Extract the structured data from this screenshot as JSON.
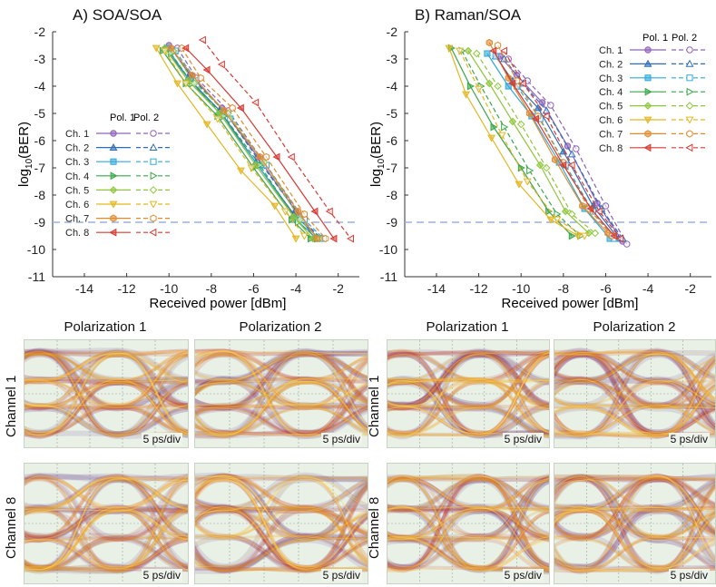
{
  "panels": [
    {
      "title": "A) SOA/SOA",
      "xlabel": "Received power [dBm]",
      "ylabel_main": "log",
      "ylabel_sub": "10",
      "ylabel_tail": "(BER)",
      "legend": {
        "header_pol1": "Pol. 1",
        "header_pol2": "Pol. 2",
        "position": "left-middle"
      }
    },
    {
      "title": "B) Raman/SOA",
      "xlabel": "Received power [dBm]",
      "ylabel_main": "log",
      "ylabel_sub": "10",
      "ylabel_tail": "(BER)",
      "legend": {
        "header_pol1": "Pol. 1",
        "header_pol2": "Pol. 2",
        "position": "top-right"
      }
    }
  ],
  "chart_data": [
    {
      "type": "line",
      "title": "A) SOA/SOA",
      "xlabel": "Received power [dBm]",
      "ylabel": "log10(BER)",
      "xlim": [
        -15.5,
        -1
      ],
      "ylim": [
        -11,
        -2
      ],
      "xticks": [
        -14,
        -12,
        -10,
        -8,
        -6,
        -4,
        -2
      ],
      "yticks": [
        -2,
        -3,
        -4,
        -5,
        -6,
        -7,
        -8,
        -9,
        -10,
        -11
      ],
      "threshold": -9,
      "grid": false,
      "channels": [
        {
          "name": "Ch. 1",
          "color": "#8e63b8",
          "marker": "circle",
          "pol1": [
            [
              -10.0,
              -2.5
            ],
            [
              -9.0,
              -3.6
            ],
            [
              -7.5,
              -4.8
            ],
            [
              -5.8,
              -6.6
            ],
            [
              -4.0,
              -8.6
            ],
            [
              -3.1,
              -9.6
            ]
          ],
          "pol2": [
            [
              -9.6,
              -2.6
            ],
            [
              -8.7,
              -3.7
            ],
            [
              -7.2,
              -4.9
            ],
            [
              -5.6,
              -6.7
            ],
            [
              -3.8,
              -8.8
            ],
            [
              -2.9,
              -9.6
            ]
          ]
        },
        {
          "name": "Ch. 2",
          "color": "#2f6db7",
          "marker": "triangle",
          "pol1": [
            [
              -10.2,
              -2.6
            ],
            [
              -9.1,
              -3.7
            ],
            [
              -7.6,
              -4.9
            ],
            [
              -5.9,
              -6.8
            ],
            [
              -4.1,
              -8.7
            ],
            [
              -2.9,
              -9.6
            ]
          ],
          "pol2": [
            [
              -9.8,
              -2.7
            ],
            [
              -8.8,
              -3.8
            ],
            [
              -7.3,
              -5.0
            ],
            [
              -5.6,
              -6.9
            ],
            [
              -3.7,
              -8.9
            ],
            [
              -2.8,
              -9.6
            ]
          ]
        },
        {
          "name": "Ch. 3",
          "color": "#2fa9d8",
          "marker": "square",
          "pol1": [
            [
              -10.1,
              -2.6
            ],
            [
              -9.0,
              -3.8
            ],
            [
              -7.6,
              -5.0
            ],
            [
              -5.8,
              -6.9
            ],
            [
              -4.0,
              -8.9
            ],
            [
              -3.0,
              -9.6
            ]
          ],
          "pol2": [
            [
              -9.7,
              -2.7
            ],
            [
              -8.7,
              -3.8
            ],
            [
              -7.1,
              -5.2
            ],
            [
              -5.4,
              -6.9
            ],
            [
              -3.6,
              -8.9
            ],
            [
              -2.7,
              -9.6
            ]
          ]
        },
        {
          "name": "Ch. 4",
          "color": "#3aa64a",
          "marker": "triangle-right",
          "pol1": [
            [
              -10.3,
              -2.7
            ],
            [
              -9.2,
              -3.9
            ],
            [
              -7.7,
              -5.1
            ],
            [
              -6.0,
              -7.0
            ],
            [
              -4.2,
              -8.9
            ],
            [
              -3.3,
              -9.6
            ]
          ],
          "pol2": [
            [
              -9.9,
              -2.8
            ],
            [
              -8.9,
              -3.9
            ],
            [
              -7.4,
              -5.1
            ],
            [
              -5.7,
              -6.9
            ],
            [
              -3.9,
              -9.0
            ],
            [
              -3.0,
              -9.6
            ]
          ]
        },
        {
          "name": "Ch. 5",
          "color": "#8fc63d",
          "marker": "diamond",
          "pol1": [
            [
              -10.2,
              -2.6
            ],
            [
              -9.1,
              -3.8
            ],
            [
              -7.6,
              -5.0
            ],
            [
              -5.9,
              -6.9
            ],
            [
              -4.1,
              -8.8
            ],
            [
              -3.2,
              -9.6
            ]
          ],
          "pol2": [
            [
              -9.8,
              -2.7
            ],
            [
              -8.8,
              -3.9
            ],
            [
              -7.2,
              -5.0
            ],
            [
              -5.5,
              -6.8
            ],
            [
              -3.8,
              -8.9
            ],
            [
              -2.9,
              -9.6
            ]
          ]
        },
        {
          "name": "Ch. 6",
          "color": "#e3b622",
          "marker": "triangle-down",
          "pol1": [
            [
              -10.6,
              -2.6
            ],
            [
              -9.6,
              -3.9
            ],
            [
              -8.2,
              -5.4
            ],
            [
              -6.6,
              -7.1
            ],
            [
              -5.0,
              -8.4
            ],
            [
              -4.0,
              -9.6
            ]
          ],
          "pol2": [
            [
              -10.2,
              -2.7
            ],
            [
              -9.2,
              -3.9
            ],
            [
              -7.7,
              -5.2
            ],
            [
              -6.1,
              -7.0
            ],
            [
              -4.5,
              -8.6
            ],
            [
              -3.6,
              -9.5
            ]
          ]
        },
        {
          "name": "Ch. 7",
          "color": "#e08a2e",
          "marker": "hexagon",
          "pol1": [
            [
              -9.9,
              -2.6
            ],
            [
              -8.9,
              -3.6
            ],
            [
              -7.4,
              -4.9
            ],
            [
              -5.7,
              -6.6
            ],
            [
              -3.9,
              -8.6
            ],
            [
              -3.0,
              -9.6
            ]
          ],
          "pol2": [
            [
              -9.4,
              -2.6
            ],
            [
              -8.5,
              -3.7
            ],
            [
              -7.0,
              -4.8
            ],
            [
              -5.4,
              -6.6
            ],
            [
              -3.6,
              -8.7
            ],
            [
              -2.6,
              -9.6
            ]
          ]
        },
        {
          "name": "Ch. 8",
          "color": "#d73a34",
          "marker": "triangle-left",
          "pol1": [
            [
              -9.2,
              -2.6
            ],
            [
              -8.2,
              -3.4
            ],
            [
              -6.6,
              -4.8
            ],
            [
              -4.9,
              -6.6
            ],
            [
              -3.1,
              -8.6
            ],
            [
              -2.2,
              -9.6
            ]
          ],
          "pol2": [
            [
              -8.4,
              -2.3
            ],
            [
              -7.5,
              -3.2
            ],
            [
              -5.9,
              -4.6
            ],
            [
              -4.2,
              -6.6
            ],
            [
              -2.4,
              -8.6
            ],
            [
              -1.4,
              -9.6
            ]
          ]
        }
      ]
    },
    {
      "type": "line",
      "title": "B) Raman/SOA",
      "xlabel": "Received power [dBm]",
      "ylabel": "log10(BER)",
      "xlim": [
        -15.5,
        -1
      ],
      "ylim": [
        -11,
        -2
      ],
      "xticks": [
        -14,
        -12,
        -10,
        -8,
        -6,
        -4,
        -2
      ],
      "yticks": [
        -2,
        -3,
        -4,
        -5,
        -6,
        -7,
        -8,
        -9,
        -10,
        -11
      ],
      "threshold": -9,
      "grid": false,
      "channels": [
        {
          "name": "Ch. 1",
          "color": "#8e63b8",
          "marker": "circle",
          "pol1": [
            [
              -11.0,
              -2.9
            ],
            [
              -10.2,
              -3.6
            ],
            [
              -9.0,
              -4.6
            ],
            [
              -7.8,
              -6.2
            ],
            [
              -6.4,
              -8.3
            ],
            [
              -5.2,
              -9.7
            ]
          ],
          "pol2": [
            [
              -10.6,
              -3.0
            ],
            [
              -9.7,
              -3.8
            ],
            [
              -8.6,
              -4.7
            ],
            [
              -7.4,
              -6.3
            ],
            [
              -6.0,
              -8.4
            ],
            [
              -5.0,
              -9.8
            ]
          ]
        },
        {
          "name": "Ch. 2",
          "color": "#2f6db7",
          "marker": "triangle",
          "pol1": [
            [
              -11.2,
              -2.9
            ],
            [
              -10.4,
              -3.8
            ],
            [
              -9.2,
              -4.8
            ],
            [
              -8.0,
              -6.4
            ],
            [
              -6.6,
              -8.4
            ],
            [
              -5.4,
              -9.6
            ]
          ],
          "pol2": [
            [
              -10.8,
              -3.0
            ],
            [
              -9.9,
              -3.9
            ],
            [
              -8.8,
              -4.9
            ],
            [
              -7.6,
              -6.5
            ],
            [
              -6.2,
              -8.5
            ],
            [
              -5.2,
              -9.6
            ]
          ]
        },
        {
          "name": "Ch. 3",
          "color": "#2fa9d8",
          "marker": "square",
          "pol1": [
            [
              -11.6,
              -2.8
            ],
            [
              -10.6,
              -4.0
            ],
            [
              -9.5,
              -5.1
            ],
            [
              -8.2,
              -6.8
            ],
            [
              -7.0,
              -8.5
            ],
            [
              -5.8,
              -9.6
            ]
          ],
          "pol2": [
            [
              -11.2,
              -2.9
            ],
            [
              -10.2,
              -4.0
            ],
            [
              -9.1,
              -5.2
            ],
            [
              -7.9,
              -6.9
            ],
            [
              -6.6,
              -8.6
            ],
            [
              -5.6,
              -9.6
            ]
          ]
        },
        {
          "name": "Ch. 4",
          "color": "#3aa64a",
          "marker": "triangle-right",
          "pol1": [
            [
              -13.3,
              -2.6
            ],
            [
              -12.4,
              -4.0
            ],
            [
              -11.3,
              -5.5
            ],
            [
              -10.0,
              -7.0
            ],
            [
              -8.7,
              -8.6
            ],
            [
              -7.6,
              -9.5
            ]
          ],
          "pol2": [
            [
              -12.8,
              -2.7
            ],
            [
              -11.9,
              -4.0
            ],
            [
              -10.8,
              -5.5
            ],
            [
              -9.6,
              -7.1
            ],
            [
              -8.3,
              -8.7
            ],
            [
              -7.2,
              -9.5
            ]
          ]
        },
        {
          "name": "Ch. 5",
          "color": "#8fc63d",
          "marker": "diamond",
          "pol1": [
            [
              -12.5,
              -2.7
            ],
            [
              -11.5,
              -3.9
            ],
            [
              -10.4,
              -5.3
            ],
            [
              -9.1,
              -6.9
            ],
            [
              -7.9,
              -8.6
            ],
            [
              -6.8,
              -9.4
            ]
          ],
          "pol2": [
            [
              -12.1,
              -2.8
            ],
            [
              -11.1,
              -4.0
            ],
            [
              -10.0,
              -5.4
            ],
            [
              -8.8,
              -7.0
            ],
            [
              -7.6,
              -8.7
            ],
            [
              -6.5,
              -9.4
            ]
          ]
        },
        {
          "name": "Ch. 6",
          "color": "#e3b622",
          "marker": "triangle-down",
          "pol1": [
            [
              -13.4,
              -2.6
            ],
            [
              -12.6,
              -4.3
            ],
            [
              -11.4,
              -5.9
            ],
            [
              -10.1,
              -7.6
            ],
            [
              -8.6,
              -8.9
            ],
            [
              -7.3,
              -9.5
            ]
          ],
          "pol2": [
            [
              -12.9,
              -2.7
            ],
            [
              -12.0,
              -4.1
            ],
            [
              -10.9,
              -5.8
            ],
            [
              -9.7,
              -7.5
            ],
            [
              -8.3,
              -8.9
            ],
            [
              -7.0,
              -9.5
            ]
          ]
        },
        {
          "name": "Ch. 7",
          "color": "#e08a2e",
          "marker": "hexagon",
          "pol1": [
            [
              -11.5,
              -2.4
            ],
            [
              -10.6,
              -3.7
            ],
            [
              -9.6,
              -5.0
            ],
            [
              -8.4,
              -6.7
            ],
            [
              -7.1,
              -8.4
            ],
            [
              -5.9,
              -9.4
            ]
          ],
          "pol2": [
            [
              -11.1,
              -2.5
            ],
            [
              -10.2,
              -3.8
            ],
            [
              -9.2,
              -5.1
            ],
            [
              -8.0,
              -6.8
            ],
            [
              -6.8,
              -8.5
            ],
            [
              -5.7,
              -9.5
            ]
          ]
        },
        {
          "name": "Ch. 8",
          "color": "#d73a34",
          "marker": "triangle-left",
          "pol1": [
            [
              -11.3,
              -2.7
            ],
            [
              -10.4,
              -3.9
            ],
            [
              -9.3,
              -5.2
            ],
            [
              -8.0,
              -6.9
            ],
            [
              -6.7,
              -8.5
            ],
            [
              -5.6,
              -9.5
            ]
          ],
          "pol2": [
            [
              -10.8,
              -2.7
            ],
            [
              -9.9,
              -3.9
            ],
            [
              -8.8,
              -5.1
            ],
            [
              -7.6,
              -6.9
            ],
            [
              -6.3,
              -8.6
            ],
            [
              -5.3,
              -9.6
            ]
          ]
        }
      ]
    }
  ],
  "eye_diagrams": [
    {
      "group": "A) SOA/SOA",
      "col_titles": [
        "Polarization 1",
        "Polarization 2"
      ],
      "row_titles": [
        "Channel 1",
        "Channel 8"
      ],
      "scale_label": "5 ps/div",
      "colors": [
        "#5a2a87",
        "#c43a2a",
        "#e9a019",
        "#ffd95a"
      ]
    },
    {
      "group": "B) Raman/SOA",
      "col_titles": [
        "Polarization 1",
        "Polarization 2"
      ],
      "row_titles": [
        "Channel 1",
        "Channel 8"
      ],
      "scale_label": "5 ps/div",
      "colors": [
        "#5a2a87",
        "#c43a2a",
        "#e9a019",
        "#ffd95a"
      ]
    }
  ],
  "colors": {
    "threshold_line": "#9bb0d8",
    "axis": "#333333"
  }
}
